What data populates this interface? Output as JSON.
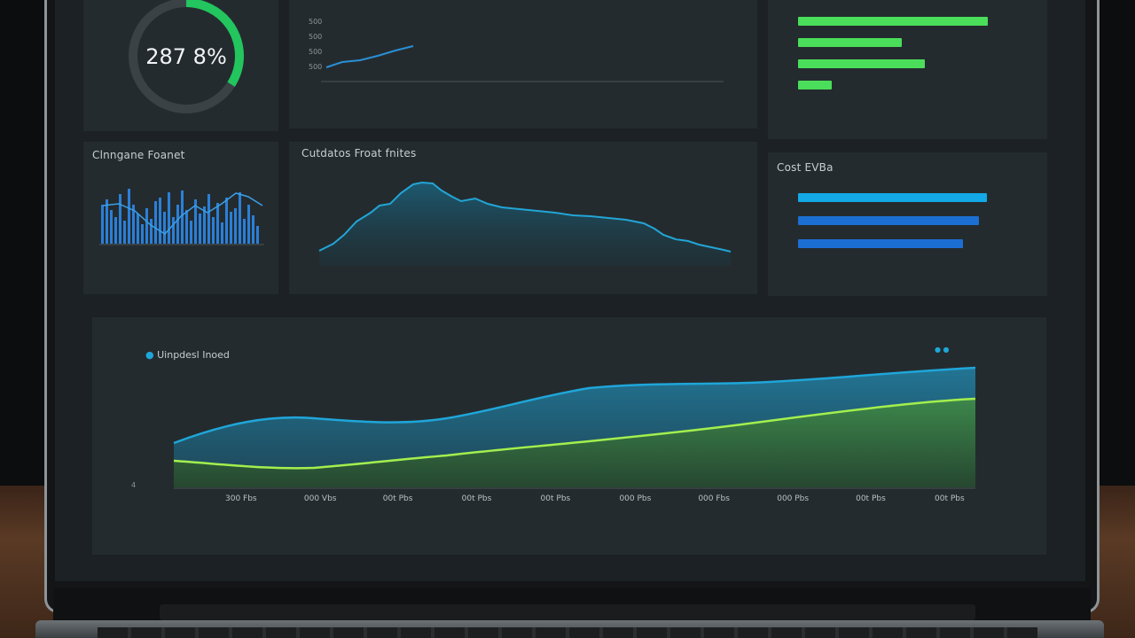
{
  "gauge": {
    "value_text": "287 8%",
    "fraction": 0.34,
    "caption": "",
    "color": "#22c55e",
    "track_color": "#3a4246"
  },
  "top_line_chart": {
    "title": "",
    "y_ticks": [
      "500",
      "500",
      "500",
      "500"
    ],
    "x_ticks": [
      "",
      "",
      "",
      "",
      ""
    ],
    "legend": [
      "",
      ""
    ],
    "color": "#2a8fd6"
  },
  "top_bars": {
    "title": "",
    "color": "#4ade5a",
    "items": [
      {
        "label": "",
        "value": 0.9,
        "value_label": ""
      },
      {
        "label": "",
        "value": 0.49,
        "value_label": ""
      },
      {
        "label": "",
        "value": 0.6,
        "value_label": ""
      },
      {
        "label": "",
        "value": 0.16,
        "value_label": ""
      }
    ]
  },
  "histogram_panel": {
    "title": "Clnngane Foanet",
    "caption": "",
    "color": "#2b7fd8"
  },
  "area_panel": {
    "title": "Cutdatos Froat fnites",
    "color": "#22a5d6"
  },
  "cost_bars": {
    "title": "Cost EVBa",
    "colors": [
      "#12a9e6",
      "#1b6fd3",
      "#1b6fd3"
    ],
    "items": [
      {
        "label": "",
        "value": 0.92,
        "value_label": ""
      },
      {
        "label": "",
        "value": 0.88,
        "value_label": ""
      },
      {
        "label": "",
        "value": 0.8,
        "value_label": ""
      }
    ]
  },
  "main_chart": {
    "title": "Uinpdesl Inoed",
    "title_tag": "",
    "legend_left": "",
    "legend_right": "",
    "y_ticks": [
      "",
      "",
      "",
      "",
      "",
      "4"
    ],
    "x_ticks": [
      "300 Fbs",
      "000 Vbs",
      "00t Pbs",
      "00t Pbs",
      "00t Pbs",
      "000 Pbs",
      "000 Fbs",
      "000 Pbs",
      "00t Pbs",
      "00t Pbs"
    ],
    "series_colors": [
      "#1fa6d9",
      "#a3ef4e"
    ]
  }
}
